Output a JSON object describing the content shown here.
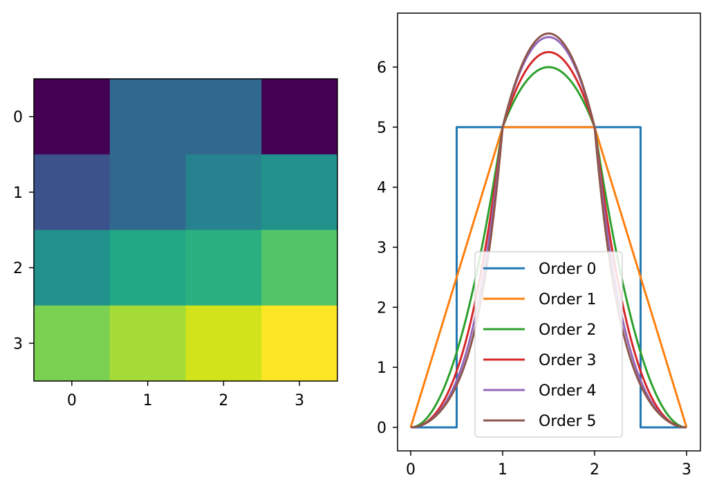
{
  "chart_data": [
    {
      "type": "heatmap",
      "colormap": "viridis",
      "rows": [
        0,
        1,
        2,
        3
      ],
      "cols": [
        0,
        1,
        2,
        3
      ],
      "x_tick_labels": [
        "0",
        "1",
        "2",
        "3"
      ],
      "y_tick_labels": [
        "0",
        "1",
        "2",
        "3"
      ],
      "cell_colors": [
        [
          "#440154",
          "#31688e",
          "#31688e",
          "#440154"
        ],
        [
          "#3b528b",
          "#31688e",
          "#26828e",
          "#21918c"
        ],
        [
          "#21918c",
          "#22a884",
          "#2ab07f",
          "#52c569"
        ],
        [
          "#7ad151",
          "#a5db36",
          "#d2e21b",
          "#fde725"
        ]
      ]
    },
    {
      "type": "line",
      "x_range": [
        0,
        3
      ],
      "ylim": [
        0,
        6.5
      ],
      "x_tick_labels": [
        "0",
        "1",
        "2",
        "3"
      ],
      "y_tick_labels": [
        "0",
        "1",
        "2",
        "3",
        "4",
        "5",
        "6"
      ],
      "legend_position": "lower center",
      "series": [
        {
          "name": "Order 0",
          "color": "#1f77b4",
          "x": [
            0,
            0.5,
            0.5,
            2.5,
            2.5,
            3
          ],
          "y": [
            0,
            0,
            5,
            5,
            0,
            0
          ]
        },
        {
          "name": "Order 1",
          "color": "#ff7f0e",
          "x": [
            0,
            1,
            2,
            3
          ],
          "y": [
            0,
            5,
            5,
            0
          ]
        },
        {
          "name": "Order 2",
          "color": "#2ca02c",
          "x": [
            0,
            0.5,
            1,
            1.5,
            2,
            2.5,
            3
          ],
          "y": [
            0,
            1.67,
            5,
            6.0,
            5,
            1.67,
            0
          ]
        },
        {
          "name": "Order 3",
          "color": "#d62728",
          "x": [
            0,
            0.5,
            1,
            1.5,
            2,
            2.5,
            3
          ],
          "y": [
            0,
            1.4,
            5,
            6.25,
            5,
            1.4,
            0
          ]
        },
        {
          "name": "Order 4",
          "color": "#9467bd",
          "x": [
            0,
            0.5,
            1,
            1.5,
            2,
            2.5,
            3
          ],
          "y": [
            0,
            1.3,
            5,
            6.5,
            5,
            1.3,
            0
          ]
        },
        {
          "name": "Order 5",
          "color": "#8c564b",
          "x": [
            0,
            0.5,
            1,
            1.5,
            2,
            2.5,
            3
          ],
          "y": [
            0,
            1.25,
            5,
            6.56,
            5,
            1.25,
            0
          ]
        }
      ]
    }
  ]
}
